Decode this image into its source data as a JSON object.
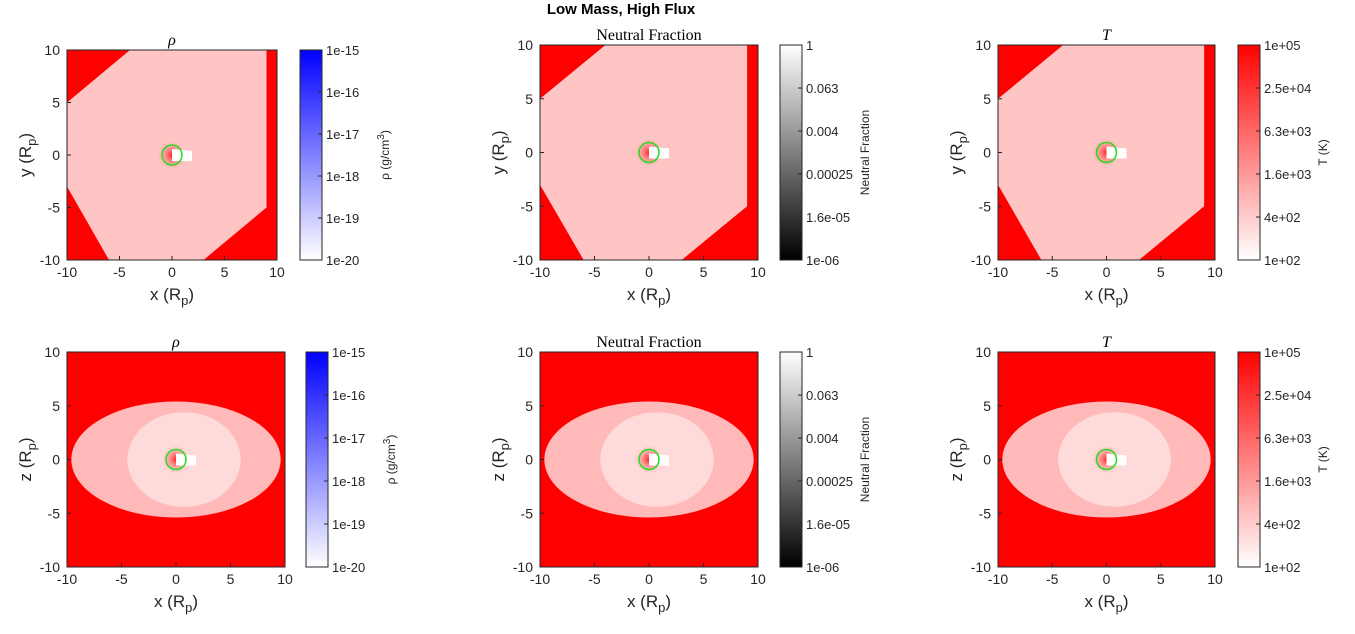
{
  "figure": {
    "suptitle": "Low Mass, High Flux"
  },
  "chart_data": [
    {
      "id": "p1",
      "type": "heatmap",
      "title": "ρ",
      "xlabel": "x (R",
      "xlabel_sub": "p",
      "ylabel": "y (R",
      "ylabel_sub": "p",
      "xlim": [
        -10,
        10
      ],
      "ylim": [
        -10,
        10
      ],
      "xticks": [
        -10,
        -5,
        0,
        5,
        10
      ],
      "yticks": [
        -10,
        -5,
        0,
        5,
        10
      ],
      "colorbar": {
        "label": "ρ (g/cm",
        "label_sup": "3",
        "label_tail": ")",
        "scale": "log",
        "ticks": [
          "1e-20",
          "1e-19",
          "1e-18",
          "1e-17",
          "1e-16",
          "1e-15"
        ],
        "low_color": "#ffffff",
        "high_color": "#0000ff"
      },
      "overlays": [
        "velocity-arrows",
        "magenta-contour",
        "planet-circle"
      ]
    },
    {
      "id": "p2",
      "type": "heatmap",
      "title": "Neutral Fraction",
      "xlabel": "x (R",
      "xlabel_sub": "p",
      "ylabel": "y (R",
      "ylabel_sub": "p",
      "xlim": [
        -10,
        10
      ],
      "ylim": [
        -10,
        10
      ],
      "xticks": [
        -10,
        -5,
        0,
        5,
        10
      ],
      "yticks": [
        -10,
        -5,
        0,
        5,
        10
      ],
      "colorbar": {
        "label": "Neutral Fraction",
        "scale": "log",
        "ticks": [
          "1e-06",
          "1.6e-05",
          "0.00025",
          "0.004",
          "0.063",
          "1"
        ],
        "low_color": "#000000",
        "high_color": "#ffffff"
      },
      "overlays": [
        "planet-circle"
      ]
    },
    {
      "id": "p3",
      "type": "heatmap",
      "title": "T",
      "xlabel": "x (R",
      "xlabel_sub": "p",
      "ylabel": "y (R",
      "ylabel_sub": "p",
      "xlim": [
        -10,
        10
      ],
      "ylim": [
        -10,
        10
      ],
      "xticks": [
        -10,
        -5,
        0,
        5,
        10
      ],
      "yticks": [
        -10,
        -5,
        0,
        5,
        10
      ],
      "colorbar": {
        "label": "T (K)",
        "scale": "log",
        "ticks": [
          "1e+02",
          "4e+02",
          "1.6e+03",
          "6.3e+03",
          "2.5e+04",
          "1e+05"
        ],
        "low_color": "#ffffff",
        "high_color": "#ff0000"
      },
      "overlays": [
        "planet-circle"
      ]
    },
    {
      "id": "p4",
      "type": "heatmap",
      "title": "ρ",
      "xlabel": "x (R",
      "xlabel_sub": "p",
      "ylabel": "z (R",
      "ylabel_sub": "p",
      "xlim": [
        -10,
        10
      ],
      "ylim": [
        -10,
        10
      ],
      "xticks": [
        -10,
        -5,
        0,
        5,
        10
      ],
      "yticks": [
        -10,
        -5,
        0,
        5,
        10
      ],
      "colorbar": {
        "label": "ρ (g/cm",
        "label_sup": "3",
        "label_tail": ")",
        "scale": "log",
        "ticks": [
          "1e-20",
          "1e-19",
          "1e-18",
          "1e-17",
          "1e-16",
          "1e-15"
        ],
        "low_color": "#ffffff",
        "high_color": "#0000ff"
      },
      "overlays": [
        "velocity-arrows",
        "magenta-contour",
        "planet-circle"
      ]
    },
    {
      "id": "p5",
      "type": "heatmap",
      "title": "Neutral Fraction",
      "xlabel": "x (R",
      "xlabel_sub": "p",
      "ylabel": "z (R",
      "ylabel_sub": "p",
      "xlim": [
        -10,
        10
      ],
      "ylim": [
        -10,
        10
      ],
      "xticks": [
        -10,
        -5,
        0,
        5,
        10
      ],
      "yticks": [
        -10,
        -5,
        0,
        5,
        10
      ],
      "colorbar": {
        "label": "Neutral Fraction",
        "scale": "log",
        "ticks": [
          "1e-06",
          "1.6e-05",
          "0.00025",
          "0.004",
          "0.063",
          "1"
        ],
        "low_color": "#000000",
        "high_color": "#ffffff"
      },
      "overlays": [
        "planet-circle"
      ]
    },
    {
      "id": "p6",
      "type": "heatmap",
      "title": "T",
      "xlabel": "x (R",
      "xlabel_sub": "p",
      "ylabel": "z (R",
      "ylabel_sub": "p",
      "xlim": [
        -10,
        10
      ],
      "ylim": [
        -10,
        10
      ],
      "xticks": [
        -10,
        -5,
        0,
        5,
        10
      ],
      "yticks": [
        -10,
        -5,
        0,
        5,
        10
      ],
      "colorbar": {
        "label": "T (K)",
        "scale": "log",
        "ticks": [
          "1e+02",
          "4e+02",
          "1.6e+03",
          "6.3e+03",
          "2.5e+04",
          "1e+05"
        ],
        "low_color": "#ffffff",
        "high_color": "#ff0000"
      },
      "overlays": [
        "planet-circle"
      ]
    }
  ]
}
